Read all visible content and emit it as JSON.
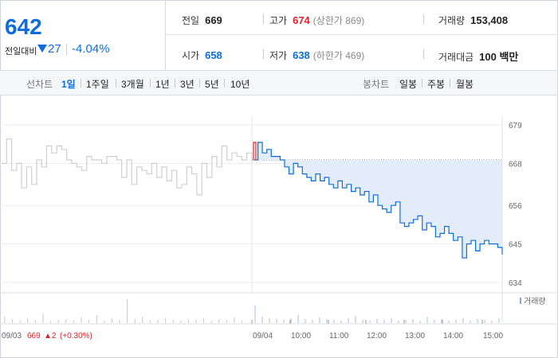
{
  "quote": {
    "price": "642",
    "change_label": "전일대비",
    "change_abs": "27",
    "change_pct": "-4.04%"
  },
  "stats": {
    "prev_close_label": "전일",
    "prev_close": "669",
    "high_label": "고가",
    "high": "674",
    "upper_limit": "(상한가 869)",
    "volume_label": "거래량",
    "volume": "153,408",
    "open_label": "시가",
    "open": "658",
    "low_label": "저가",
    "low": "638",
    "lower_limit": "(하한가 469)",
    "amount_label": "거래대금",
    "amount": "100 백만"
  },
  "toolbar": {
    "line_chart_label": "선차트",
    "periods": [
      "1일",
      "1주일",
      "3개월",
      "1년",
      "3년",
      "5년",
      "10년"
    ],
    "active_period": "1일",
    "candle_label": "봉차트",
    "candles": [
      "일봉",
      "주봉",
      "월봉"
    ]
  },
  "chart_data": {
    "type": "line",
    "ylim": [
      634,
      681
    ],
    "y_ticks": [
      "679",
      "668",
      "656",
      "645",
      "634"
    ],
    "prev_close": 669,
    "x_ticks": [
      "09/04",
      "10:00",
      "11:00",
      "12:00",
      "13:00",
      "14:00",
      "15:00"
    ],
    "volume_legend": "거래량",
    "prev_day": {
      "date": "09/03",
      "close": "669",
      "change": "▲2",
      "change_pct": "(+0.30%)",
      "values": [
        668,
        675,
        666,
        668,
        661,
        667,
        662,
        669,
        667,
        673,
        671,
        673,
        672,
        669,
        668,
        667,
        666,
        670,
        669,
        669,
        668,
        670,
        670,
        669,
        664,
        669,
        662,
        667,
        666,
        665,
        668,
        664,
        667,
        663,
        666,
        661,
        662,
        667,
        665,
        659,
        668,
        664,
        670,
        667,
        673,
        669,
        671,
        670,
        669,
        671,
        669
      ]
    },
    "today_values": [
      669,
      674,
      671,
      672,
      670,
      670,
      669,
      667,
      665,
      668,
      667,
      665,
      664,
      663,
      665,
      663,
      664,
      662,
      661,
      663,
      661,
      662,
      660,
      661,
      659,
      660,
      657,
      659,
      656,
      655,
      654,
      656,
      657,
      651,
      650,
      651,
      652,
      653,
      649,
      651,
      650,
      647,
      648,
      650,
      648,
      646,
      647,
      641,
      645,
      646,
      643,
      645,
      646,
      645,
      645,
      644,
      642
    ]
  },
  "colors": {
    "accent_blue": "#0d6edb",
    "up_red": "#e0202a",
    "fill": "#e3edf9",
    "prev_line": "#cfcfcf"
  }
}
